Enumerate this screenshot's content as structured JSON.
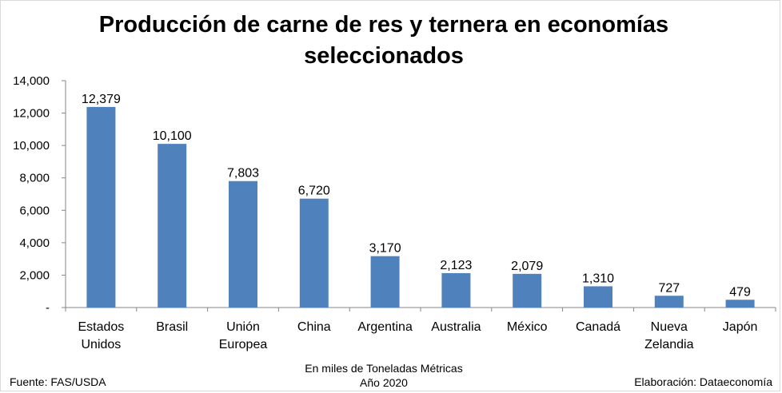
{
  "chart_data": {
    "type": "bar",
    "title": "Producción de carne de res y ternera en economías seleccionados",
    "categories": [
      [
        "Estados",
        "Unidos"
      ],
      [
        "Brasil"
      ],
      [
        "Unión",
        "Europea"
      ],
      [
        "China"
      ],
      [
        "Argentina"
      ],
      [
        "Australia"
      ],
      [
        "México"
      ],
      [
        "Canadá"
      ],
      [
        "Nueva",
        "Zelandia"
      ],
      [
        "Japón"
      ]
    ],
    "values": [
      12379,
      10100,
      7803,
      6720,
      3170,
      2123,
      2079,
      1310,
      727,
      479
    ],
    "data_labels": [
      "12,379",
      "10,100",
      "7,803",
      "6,720",
      "3,170",
      "2,123",
      "2,079",
      "1,310",
      "727",
      "479"
    ],
    "y_ticks": [
      0,
      2000,
      4000,
      6000,
      8000,
      10000,
      12000,
      14000
    ],
    "y_tick_labels": [
      "-",
      "2,000",
      "4,000",
      "6,000",
      "8,000",
      "10,000",
      "12,000",
      "14,000"
    ],
    "ylim": [
      0,
      14000
    ],
    "grid": false,
    "bar_color": "#4f81bd",
    "axis_color": "#868686"
  },
  "footer": {
    "source": "Fuente: FAS/USDA",
    "unit_line": "En miles de Toneladas Métricas",
    "year_line": "Año 2020",
    "credit": "Elaboración: Dataeconomía"
  }
}
